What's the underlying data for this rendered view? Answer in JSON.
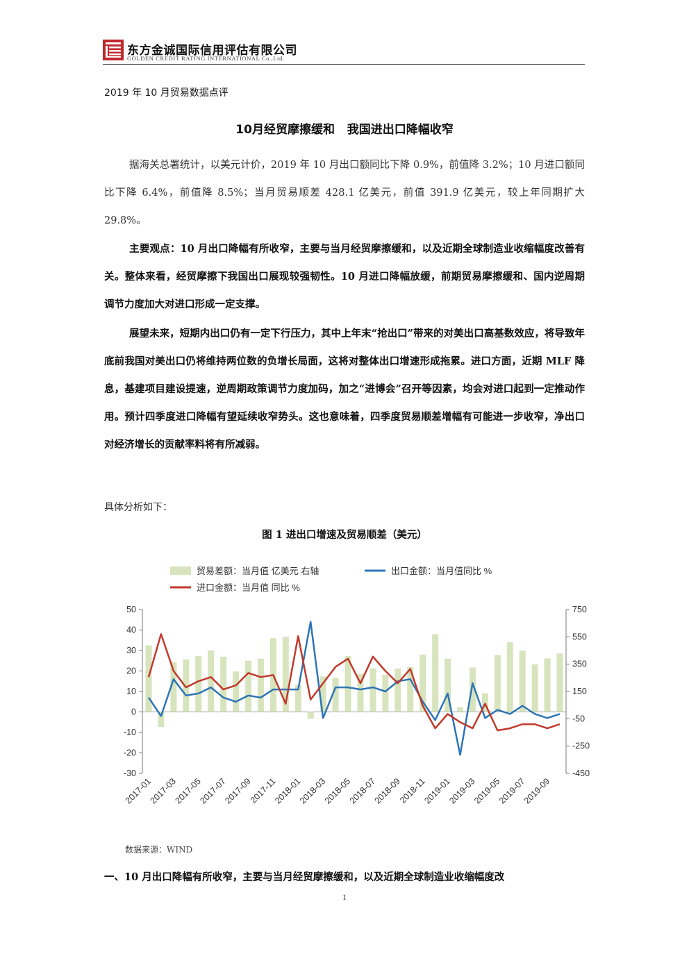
{
  "header": {
    "company_cn": "东方金诚国际信用评估有限公司",
    "company_en": "GOLDEN CREDIT RATING INTERNATIONAL Co.,Ltd.",
    "brand_color": "#c0282d"
  },
  "subtitle": "2019 年 10 月贸易数据点评",
  "title": "10月经贸摩擦缓和   我国进出口降幅收窄",
  "paragraphs": {
    "p1": "据海关总署统计，以美元计价，2019 年 10 月出口额同比下降 0.9%，前值降 3.2%；10 月进口额同比下降 6.4%，前值降 8.5%；当月贸易顺差 428.1 亿美元，前值 391.9 亿美元，较上年同期扩大 29.8%。",
    "p2": "主要观点：10 月出口降幅有所收窄，主要与当月经贸摩擦缓和，以及近期全球制造业收缩幅度改善有关。整体来看，经贸摩擦下我国出口展现较强韧性。10 月进口降幅放缓，前期贸易摩擦缓和、国内逆周期调节力度加大对进口形成一定支撑。",
    "p3": "展望未来，短期内出口仍有一定下行压力，其中上年末“抢出口”带来的对美出口高基数效应，将导致年底前我国对美出口仍将维持两位数的负增长局面，这将对整体出口增速形成拖累。进口方面，近期 MLF 降息，基建项目建设提速，逆周期政策调节力度加码，加之“进博会”召开等因素，均会对进口起到一定推动作用。预计四季度进口降幅有望延续收窄势头。这也意味着，四季度贸易顺差增幅有可能进一步收窄，净出口对经济增长的贡献率料将有所减弱。"
  },
  "intro": "具体分析如下：",
  "figure_title": "图 1  进出口增速及贸易顺差（美元）",
  "source": "数据来源：WIND",
  "section_heading": "一、10 月出口降幅有所收窄，主要与当月经贸摩擦缓和，以及近期全球制造业收缩幅度改",
  "page_number": "1",
  "chart_data": {
    "type": "bar+line",
    "legend": [
      "贸易差额：当月值 亿美元 右轴",
      "出口金额：当月值同比 %",
      "进口金额：当月值 同比 %"
    ],
    "legend_placement": "top",
    "colors": {
      "bar": "#d7e4bd",
      "export": "#2e75b6",
      "import": "#c0392b"
    },
    "categories": [
      "2017-01",
      "2017-02",
      "2017-03",
      "2017-04",
      "2017-05",
      "2017-06",
      "2017-07",
      "2017-08",
      "2017-09",
      "2017-10",
      "2017-11",
      "2017-12",
      "2018-01",
      "2018-02",
      "2018-03",
      "2018-04",
      "2018-05",
      "2018-06",
      "2018-07",
      "2018-08",
      "2018-09",
      "2018-10",
      "2018-11",
      "2018-12",
      "2019-01",
      "2019-02",
      "2019-03",
      "2019-04",
      "2019-05",
      "2019-06",
      "2019-07",
      "2019-08",
      "2019-09",
      "2019-10"
    ],
    "x_tick_labels": [
      "2017-01",
      "2017-03",
      "2017-05",
      "2017-07",
      "2017-09",
      "2017-11",
      "2018-01",
      "2018-03",
      "2018-05",
      "2018-07",
      "2018-09",
      "2018-11",
      "2019-01",
      "2019-03",
      "2019-05",
      "2019-07",
      "2019-09"
    ],
    "left_axis": {
      "ylim": [
        -30,
        50
      ],
      "ticks": [
        "50",
        "40",
        "30",
        "20",
        "10",
        "0",
        "-10",
        "-20",
        "-30"
      ]
    },
    "right_axis": {
      "ylim": [
        -450,
        750
      ],
      "ticks": [
        "750",
        "550",
        "350",
        "150",
        "-50",
        "-250",
        "-450"
      ]
    },
    "series": [
      {
        "name": "贸易差额：当月值 亿美元 右轴",
        "axis": "right",
        "type": "bar",
        "values": [
          488,
          -110,
          365,
          385,
          410,
          450,
          405,
          296,
          375,
          390,
          540,
          550,
          200,
          -50,
          260,
          250,
          410,
          280,
          320,
          272,
          317,
          330,
          420,
          570,
          390,
          34,
          325,
          137,
          417,
          510,
          450,
          348,
          392,
          428
        ]
      },
      {
        "name": "出口金额：当月值同比 %",
        "axis": "left",
        "type": "line",
        "values": [
          7,
          -2,
          16,
          8,
          9,
          12,
          7,
          5,
          8,
          7,
          11,
          11,
          11,
          44,
          -3,
          12,
          12,
          11,
          12,
          10,
          15,
          16,
          5,
          -4,
          9,
          -21,
          14,
          -3,
          1,
          -1,
          3,
          -1,
          -3,
          -1
        ]
      },
      {
        "name": "进口金额：当月值 同比 %",
        "axis": "left",
        "type": "line",
        "values": [
          17,
          38,
          20,
          12,
          15,
          17,
          11,
          13,
          19,
          17,
          18,
          4,
          37,
          6,
          14,
          22,
          26,
          14,
          27,
          20,
          14,
          21,
          3,
          -8,
          -1,
          -5,
          -8,
          4,
          -9,
          -8,
          -6,
          -6,
          -8,
          -6
        ]
      }
    ]
  }
}
